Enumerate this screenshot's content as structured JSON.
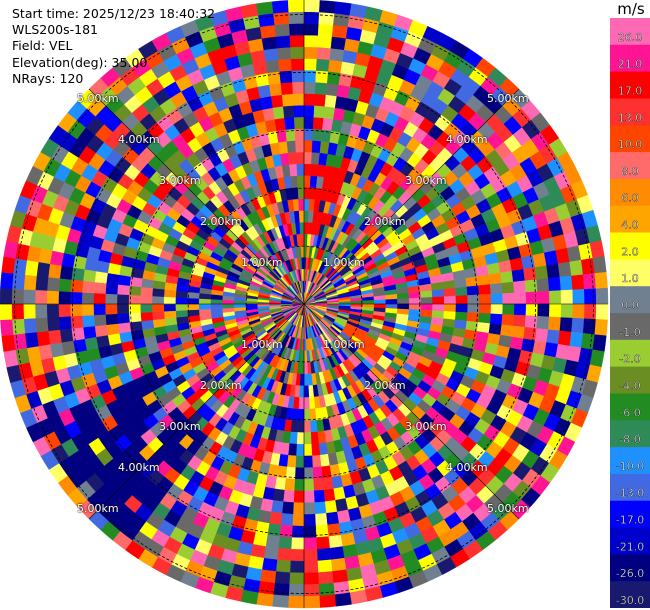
{
  "info": {
    "start_time": "Start time: 2025/12/23 18:40:32",
    "station": "WLS200s-181",
    "field": "Field: VEL",
    "elevation": "Elevation(deg): 35.00",
    "nrays": "NRays: 120"
  },
  "colorbar": {
    "unit": "m/s",
    "ticks": [
      "26.0",
      "21.0",
      "17.0",
      "13.0",
      "10.0",
      "8.0",
      "6.0",
      "4.0",
      "2.0",
      "1.0",
      "0.0",
      "-1.0",
      "-2.0",
      "-4.0",
      "-6.0",
      "-8.0",
      "-10.0",
      "-13.0",
      "-17.0",
      "-21.0",
      "-26.0",
      "-30.0"
    ],
    "colors": [
      "#ff69b4",
      "#ff1493",
      "#ff0000",
      "#ff3030",
      "#ff4500",
      "#ff6a6a",
      "#ff8c00",
      "#ffa500",
      "#ffff00",
      "#ffff66",
      "#708090",
      "#696969",
      "#9acd32",
      "#6b8e23",
      "#228b22",
      "#2e8b57",
      "#1e90ff",
      "#4169e1",
      "#0000ff",
      "#0000cd",
      "#000080",
      "#191970"
    ]
  },
  "chart_data": {
    "type": "ppi",
    "field": "VEL",
    "unit": "m/s",
    "nrays": 120,
    "elevation_deg": 35.0,
    "range_rings_km": [
      1,
      2,
      3,
      4,
      5
    ],
    "ring_labels": [
      "1.00km",
      "2.00km",
      "3.00km",
      "4.00km",
      "5.00km"
    ],
    "value_min": -30.0,
    "value_max": 26.0,
    "features": [
      {
        "azimuth_deg_from": 0,
        "azimuth_deg_to": 18,
        "range_km_from": 1.3,
        "range_km_to": 2.4,
        "color": "#ff0000"
      },
      {
        "azimuth_deg_from": 115,
        "azimuth_deg_to": 130,
        "range_km_from": 0.8,
        "range_km_to": 1.6,
        "color": "#ff4500"
      },
      {
        "azimuth_deg_from": 215,
        "azimuth_deg_to": 245,
        "range_km_from": 2.8,
        "range_km_to": 5.0,
        "color": "#000080"
      }
    ]
  }
}
